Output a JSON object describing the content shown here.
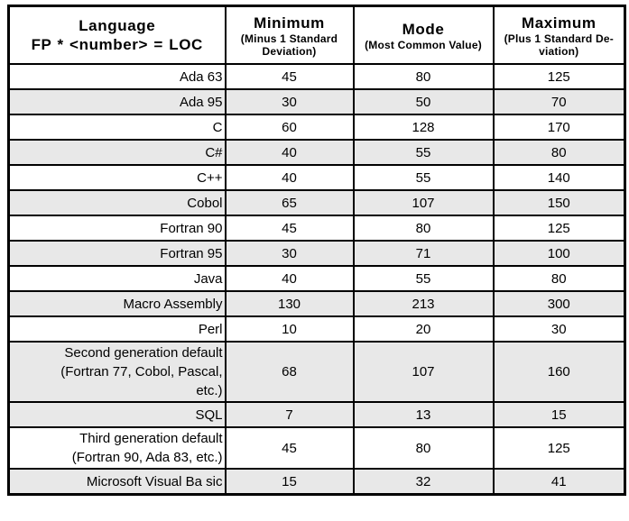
{
  "colors": {
    "row_shade": "#e8e8e8",
    "border": "#000000",
    "background": "#ffffff",
    "text": "#000000"
  },
  "table": {
    "header": {
      "language_title": "Language",
      "language_subtitle": "FP * <number> = LOC",
      "columns": [
        {
          "title": "Minimum",
          "subtitle_lines": [
            "(Minus 1 Standard",
            "Deviation)"
          ]
        },
        {
          "title": "Mode",
          "subtitle_lines": [
            "(Most Common Value)"
          ]
        },
        {
          "title": "Maximum",
          "subtitle_lines": [
            "(Plus 1 Standard De-",
            "viation)"
          ]
        }
      ]
    },
    "rows": [
      {
        "language_lines": [
          "Ada 63"
        ],
        "minimum": "45",
        "mode": "80",
        "maximum": "125",
        "shaded": false
      },
      {
        "language_lines": [
          "Ada 95"
        ],
        "minimum": "30",
        "mode": "50",
        "maximum": "70",
        "shaded": true
      },
      {
        "language_lines": [
          "C"
        ],
        "minimum": "60",
        "mode": "128",
        "maximum": "170",
        "shaded": false
      },
      {
        "language_lines": [
          "C#"
        ],
        "minimum": "40",
        "mode": "55",
        "maximum": "80",
        "shaded": true
      },
      {
        "language_lines": [
          "C++"
        ],
        "minimum": "40",
        "mode": "55",
        "maximum": "140",
        "shaded": false
      },
      {
        "language_lines": [
          "Cobol"
        ],
        "minimum": "65",
        "mode": "107",
        "maximum": "150",
        "shaded": true
      },
      {
        "language_lines": [
          "Fortran 90"
        ],
        "minimum": "45",
        "mode": "80",
        "maximum": "125",
        "shaded": false
      },
      {
        "language_lines": [
          "Fortran 95"
        ],
        "minimum": "30",
        "mode": "71",
        "maximum": "100",
        "shaded": true
      },
      {
        "language_lines": [
          "Java"
        ],
        "minimum": "40",
        "mode": "55",
        "maximum": "80",
        "shaded": false
      },
      {
        "language_lines": [
          "Macro Assembly"
        ],
        "minimum": "130",
        "mode": "213",
        "maximum": "300",
        "shaded": true
      },
      {
        "language_lines": [
          "Perl"
        ],
        "minimum": "10",
        "mode": "20",
        "maximum": "30",
        "shaded": false
      },
      {
        "language_lines": [
          "Second generation default",
          "(Fortran 77, Cobol, Pascal,",
          "etc.)"
        ],
        "minimum": "68",
        "mode": "107",
        "maximum": "160",
        "shaded": true
      },
      {
        "language_lines": [
          "SQL"
        ],
        "minimum": "7",
        "mode": "13",
        "maximum": "15",
        "shaded": true
      },
      {
        "language_lines": [
          "Third generation default",
          "(Fortran 90, Ada 83, etc.)"
        ],
        "minimum": "45",
        "mode": "80",
        "maximum": "125",
        "shaded": false
      },
      {
        "language_lines": [
          "Microsoft Visual Ba sic"
        ],
        "minimum": "15",
        "mode": "32",
        "maximum": "41",
        "shaded": true
      }
    ]
  }
}
